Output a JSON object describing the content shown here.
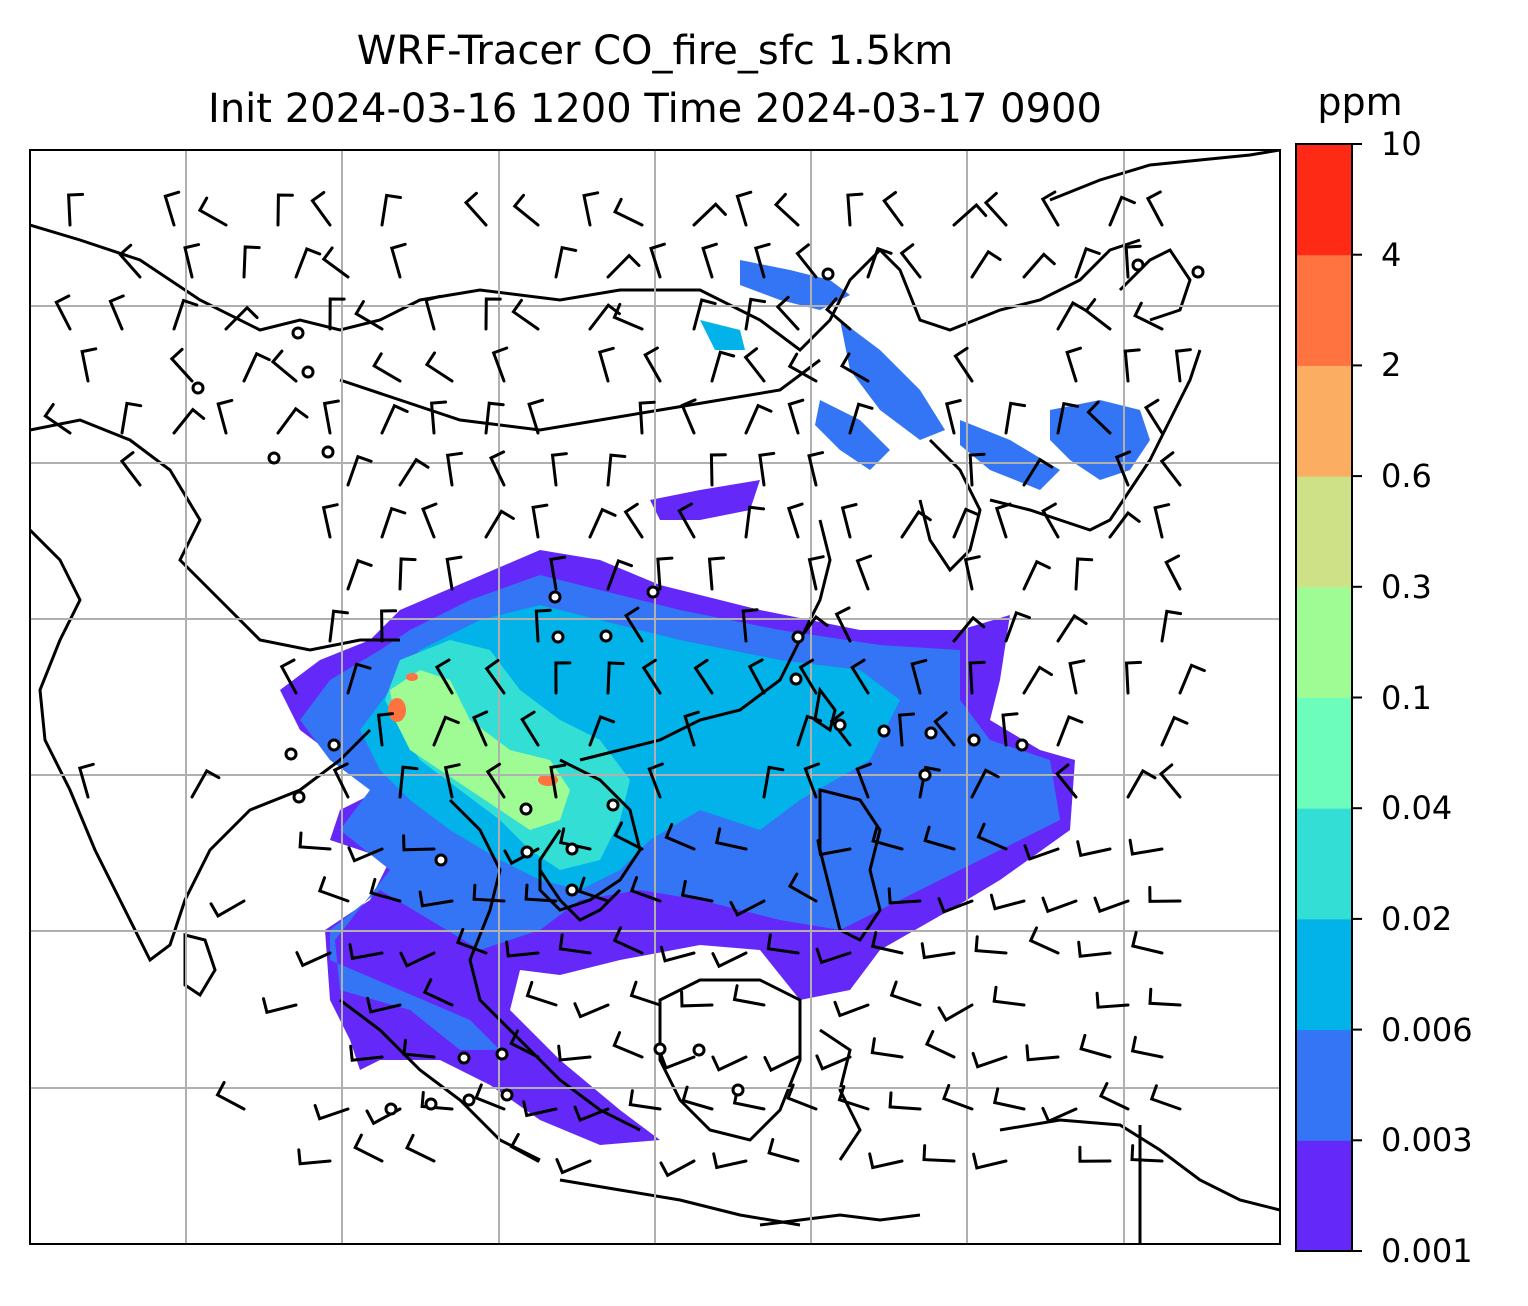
{
  "title": {
    "line1": "WRF-Tracer CO_fire_sfc 1.5km",
    "line2": "Init 2024-03-16 1200 Time 2024-03-17 0900"
  },
  "colorbar": {
    "unit": "ppm",
    "levels": [
      "0.001",
      "0.003",
      "0.006",
      "0.02",
      "0.04",
      "0.1",
      "0.3",
      "0.6",
      "2",
      "4",
      "10"
    ],
    "colors": [
      "#6428f8",
      "#3375f4",
      "#02b3e9",
      "#33dfd5",
      "#6cfcbb",
      "#9ffc94",
      "#cfe186",
      "#fbae62",
      "#fe7340",
      "#fe2a15"
    ]
  },
  "map": {
    "gridlines": true,
    "plume_colors": {
      "outer": "#6428f8",
      "mid": "#3375f4",
      "inner": "#02b3e9",
      "core": "#33dfd5",
      "high": "#9ffc94",
      "peak": "#fe7340"
    }
  }
}
